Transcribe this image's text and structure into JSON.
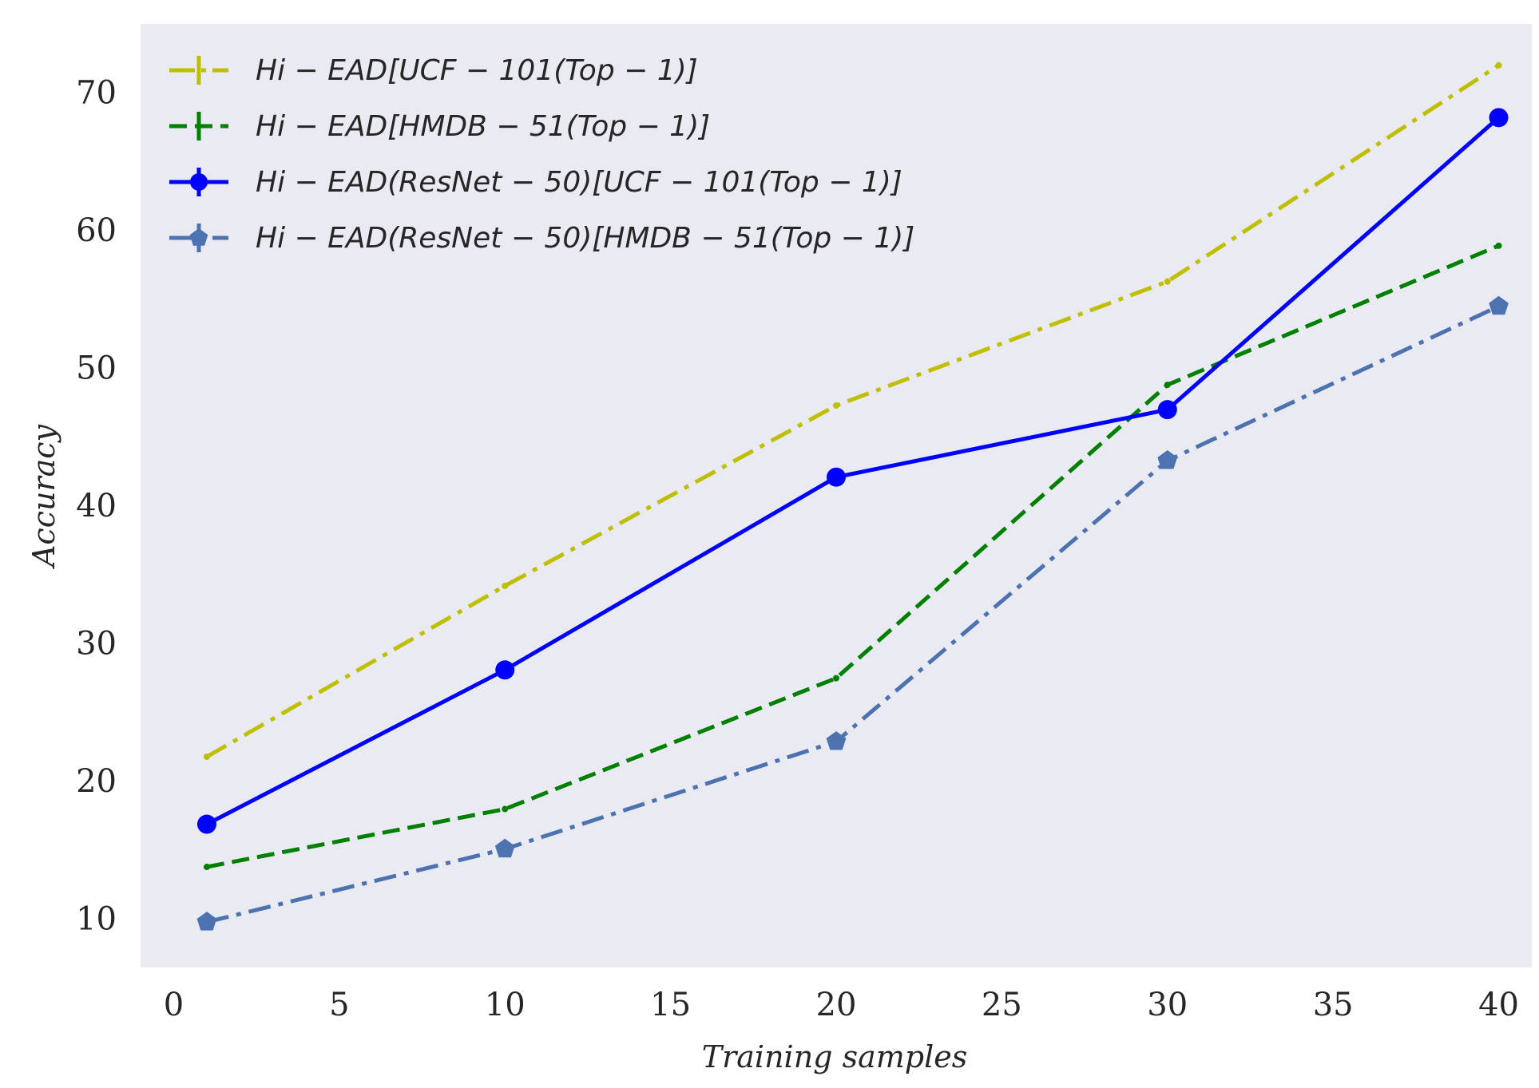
{
  "chart_data": {
    "type": "line",
    "title": "",
    "xlabel": "Training samples",
    "ylabel": "Accuracy",
    "xlim": [
      -1,
      41
    ],
    "ylim": [
      6.5,
      75
    ],
    "xticks": [
      0,
      5,
      10,
      15,
      20,
      25,
      30,
      35,
      40
    ],
    "yticks": [
      10,
      20,
      30,
      40,
      50,
      60,
      70
    ],
    "grid": false,
    "legend_position": "top-left",
    "background": "#eaeaf2",
    "series": [
      {
        "name": "Hi − EAD[UCF − 101(Top − 1)]",
        "color": "#bfbf00",
        "linestyle": "dashdot",
        "marker": "plus",
        "x": [
          1,
          10,
          20,
          30,
          40
        ],
        "values": [
          21.8,
          34.2,
          47.3,
          56.3,
          72.0
        ]
      },
      {
        "name": "Hi − EAD[HMDB − 51(Top − 1)]",
        "color": "#008000",
        "linestyle": "dashed",
        "marker": "plus",
        "x": [
          1,
          10,
          20,
          30,
          40
        ],
        "values": [
          13.8,
          18.0,
          27.5,
          48.8,
          58.9
        ]
      },
      {
        "name": "Hi − EAD(ResNet − 50)[UCF − 101(Top − 1)]",
        "color": "#0000ff",
        "linestyle": "solid",
        "marker": "circle",
        "x": [
          1,
          10,
          20,
          30,
          40
        ],
        "values": [
          16.9,
          28.1,
          42.1,
          47.0,
          68.2
        ]
      },
      {
        "name": "Hi − EAD(ResNet − 50)[HMDB − 51(Top − 1)]",
        "color": "#4c72b0",
        "linestyle": "dashdot",
        "marker": "pentagon",
        "x": [
          1,
          10,
          20,
          30,
          40
        ],
        "values": [
          9.8,
          15.1,
          22.9,
          43.3,
          54.5
        ]
      }
    ]
  }
}
